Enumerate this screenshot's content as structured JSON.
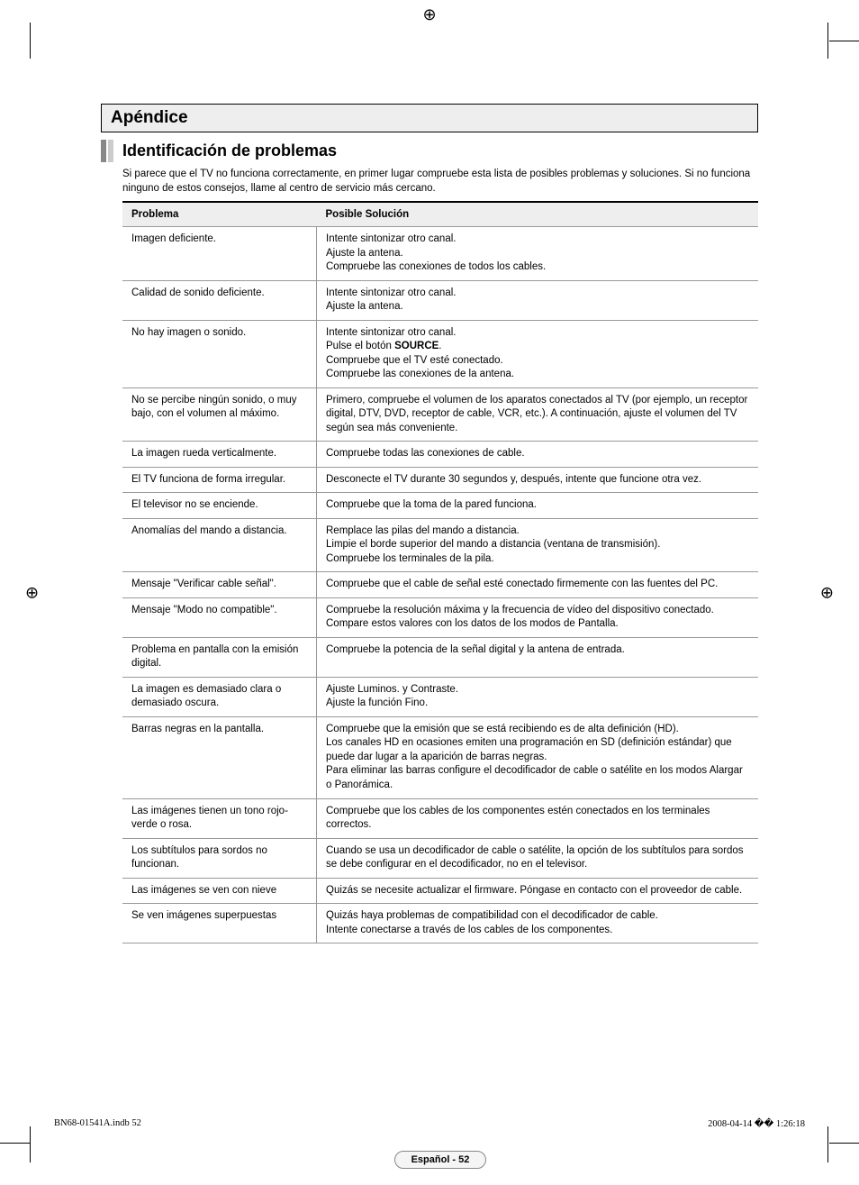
{
  "appendix_title": "Apéndice",
  "section_title": "Identificación de problemas",
  "intro": "Si parece que el TV no funciona correctamente, en primer lugar compruebe esta lista de posibles problemas y soluciones. Si no funciona ninguno de estos consejos, llame al centro de servicio más cercano.",
  "headers": {
    "problem": "Problema",
    "solution": "Posible Solución"
  },
  "rows": [
    {
      "p": "Imagen deficiente.",
      "s": "Intente sintonizar otro canal.\nAjuste la antena.\nCompruebe las conexiones de todos los cables."
    },
    {
      "p": "Calidad de sonido deficiente.",
      "s": "Intente sintonizar otro canal.\nAjuste la antena."
    },
    {
      "p": "No hay imagen o sonido.",
      "s": "Intente sintonizar otro canal.\nPulse el botón <b>SOURCE</b>.\nCompruebe que el TV esté conectado.\nCompruebe las conexiones de la antena."
    },
    {
      "p": "No se percibe ningún sonido, o muy bajo, con el volumen al máximo.",
      "s": "Primero, compruebe el volumen de los aparatos conectados al TV (por ejemplo, un receptor digital, DTV, DVD, receptor de cable, VCR, etc.). A continuación, ajuste el volumen del TV según sea más conveniente."
    },
    {
      "p": "La imagen rueda verticalmente.",
      "s": "Compruebe todas las conexiones de cable."
    },
    {
      "p": "El TV funciona de forma irregular.",
      "s": "Desconecte el TV durante 30 segundos y, después, intente que funcione otra vez."
    },
    {
      "p": "El televisor no se enciende.",
      "s": "Compruebe que la toma de la pared funciona."
    },
    {
      "p": "Anomalías del mando a distancia.",
      "s": "Remplace las pilas del mando a distancia.\nLimpie el borde superior del mando a distancia (ventana de transmisión).\nCompruebe los terminales de la pila."
    },
    {
      "p": "Mensaje \"Verificar cable señal\".",
      "s": "Compruebe que el cable de señal esté conectado firmemente con las fuentes del PC."
    },
    {
      "p": "Mensaje \"Modo no compatible\".",
      "s": "Compruebe la resolución máxima y la frecuencia de vídeo del dispositivo conectado.\nCompare estos valores con los datos de los modos de Pantalla."
    },
    {
      "p": "Problema en pantalla con la emisión digital.",
      "s": "Compruebe la potencia de la señal digital y la antena de entrada."
    },
    {
      "p": "La imagen es demasiado clara o demasiado oscura.",
      "s": "Ajuste Luminos. y Contraste.\nAjuste la función Fino."
    },
    {
      "p": "Barras negras en la pantalla.",
      "s": "Compruebe que la emisión que se está recibiendo es de alta definición (HD).\nLos canales HD en ocasiones emiten una programación en SD (definición estándar) que puede dar lugar a la aparición de barras negras.\nPara eliminar las barras configure el decodificador de cable o satélite en los modos Alargar o Panorámica."
    },
    {
      "p": "Las imágenes tienen un tono rojo-verde o rosa.",
      "s": "Compruebe que los cables de los componentes estén conectados en los terminales correctos."
    },
    {
      "p": "Los subtítulos para sordos no funcionan.",
      "s": "Cuando se usa un decodificador de cable o satélite, la opción de los subtítulos para sordos se debe configurar en el decodificador, no en el televisor."
    },
    {
      "p": "Las imágenes se ven con nieve",
      "s": "Quizás se necesite actualizar el firmware. Póngase en contacto con el proveedor de cable."
    },
    {
      "p": "Se ven imágenes superpuestas",
      "s": "Quizás haya problemas de compatibilidad con el decodificador de cable.\nIntente conectarse a través de los cables de los componentes."
    }
  ],
  "badge": "Español - 52",
  "footer": {
    "left": "BN68-01541A.indb   52",
    "right": "2008-04-14   �� 1:26:18"
  }
}
